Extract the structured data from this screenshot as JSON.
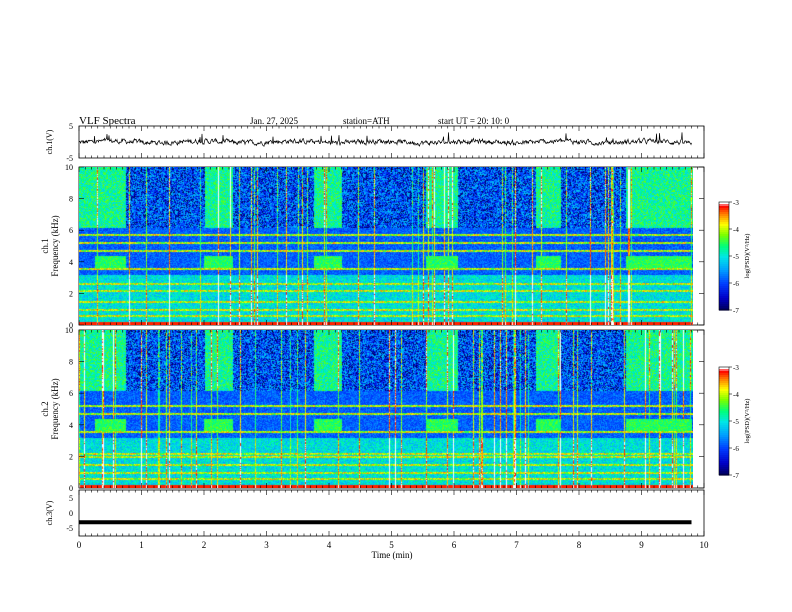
{
  "header": {
    "title": "VLF  Spectra",
    "date": "Jan. 27, 2025",
    "station": "station=ATH",
    "start_ut": "start  UT  =   20: 10: 0"
  },
  "chart_data": [
    {
      "type": "line",
      "panel": "ch1-waveform",
      "ylabel": "ch.1(V)",
      "ylim": [
        -5,
        5
      ],
      "yticks": [
        "5",
        "-5"
      ],
      "x_range_min": [
        0,
        9.8
      ],
      "signal": "dense noisy trace centered near 0 V, typical range about -1 to +1 V, spikes to about +2 V"
    },
    {
      "type": "heatmap",
      "panel": "ch1-spectrogram",
      "ylabel": "ch.1\nFrequency (kHz)",
      "ylim": [
        0,
        10
      ],
      "yticks": [
        "0",
        "2",
        "4",
        "6",
        "8",
        "10"
      ],
      "x_range_min": [
        0,
        9.8
      ],
      "colorbar": {
        "label": "log(PSD)(V²/Hz)",
        "range": [
          -7,
          -3
        ],
        "ticks": [
          "-3",
          "-4",
          "-5",
          "-6",
          "-7"
        ]
      },
      "features": {
        "pulses_4khz_min": [
          [
            0.25,
            0.75
          ],
          [
            2.0,
            2.45
          ],
          [
            3.75,
            4.2
          ],
          [
            5.55,
            6.05
          ],
          [
            7.3,
            7.7
          ],
          [
            8.75,
            9.8
          ]
        ],
        "quiet_gaps_min": [
          [
            0.75,
            2.0
          ],
          [
            2.45,
            3.75
          ],
          [
            4.2,
            5.55
          ],
          [
            6.05,
            7.3
          ],
          [
            7.7,
            8.75
          ]
        ],
        "persistent_lines_khz": [
          0.6,
          1.0,
          1.5,
          2.2,
          2.6,
          3.6,
          4.7,
          5.2,
          5.7
        ]
      }
    },
    {
      "type": "heatmap",
      "panel": "ch2-spectrogram",
      "ylabel": "ch.2\nFrequency (kHz)",
      "ylim": [
        0,
        10
      ],
      "yticks": [
        "0",
        "2",
        "4",
        "6",
        "8",
        "10"
      ],
      "x_range_min": [
        0,
        9.8
      ],
      "colorbar": {
        "label": "log(PSD)(V²/Hz)",
        "range": [
          -7,
          -3
        ],
        "ticks": [
          "-3",
          "-4",
          "-5",
          "-6",
          "-7"
        ]
      },
      "features": {
        "pulses_4khz_min": [
          [
            0.25,
            0.75
          ],
          [
            2.0,
            2.45
          ],
          [
            3.75,
            4.2
          ],
          [
            5.55,
            6.05
          ],
          [
            7.3,
            7.7
          ],
          [
            8.75,
            9.8
          ]
        ],
        "quiet_gaps_min": [
          [
            0.75,
            2.0
          ],
          [
            2.45,
            3.75
          ],
          [
            4.2,
            5.55
          ],
          [
            6.05,
            7.3
          ],
          [
            7.7,
            8.75
          ]
        ],
        "persistent_lines_khz": [
          0.6,
          1.0,
          1.5,
          2.0,
          2.2,
          3.6,
          4.7,
          5.2
        ]
      }
    },
    {
      "type": "line",
      "panel": "ch3-waveform",
      "ylabel": "ch.3(V)",
      "ylim": [
        -5,
        5
      ],
      "yticks": [
        "5",
        "0",
        "-5"
      ],
      "x_range_min": [
        0,
        9.8
      ],
      "signal": "flat thick trace at about -2 V"
    }
  ],
  "x_axis": {
    "label": "Time  (min)",
    "range": [
      0,
      10
    ],
    "ticks": [
      "0",
      "1",
      "2",
      "3",
      "4",
      "5",
      "6",
      "7",
      "8",
      "9",
      "10"
    ]
  },
  "colors": {
    "colormap": [
      "#000000",
      "#000080",
      "#0000ff",
      "#0080ff",
      "#00ffff",
      "#00ff80",
      "#80ff00",
      "#ffff00",
      "#ff8000",
      "#ff0000",
      "#ffffff"
    ]
  }
}
